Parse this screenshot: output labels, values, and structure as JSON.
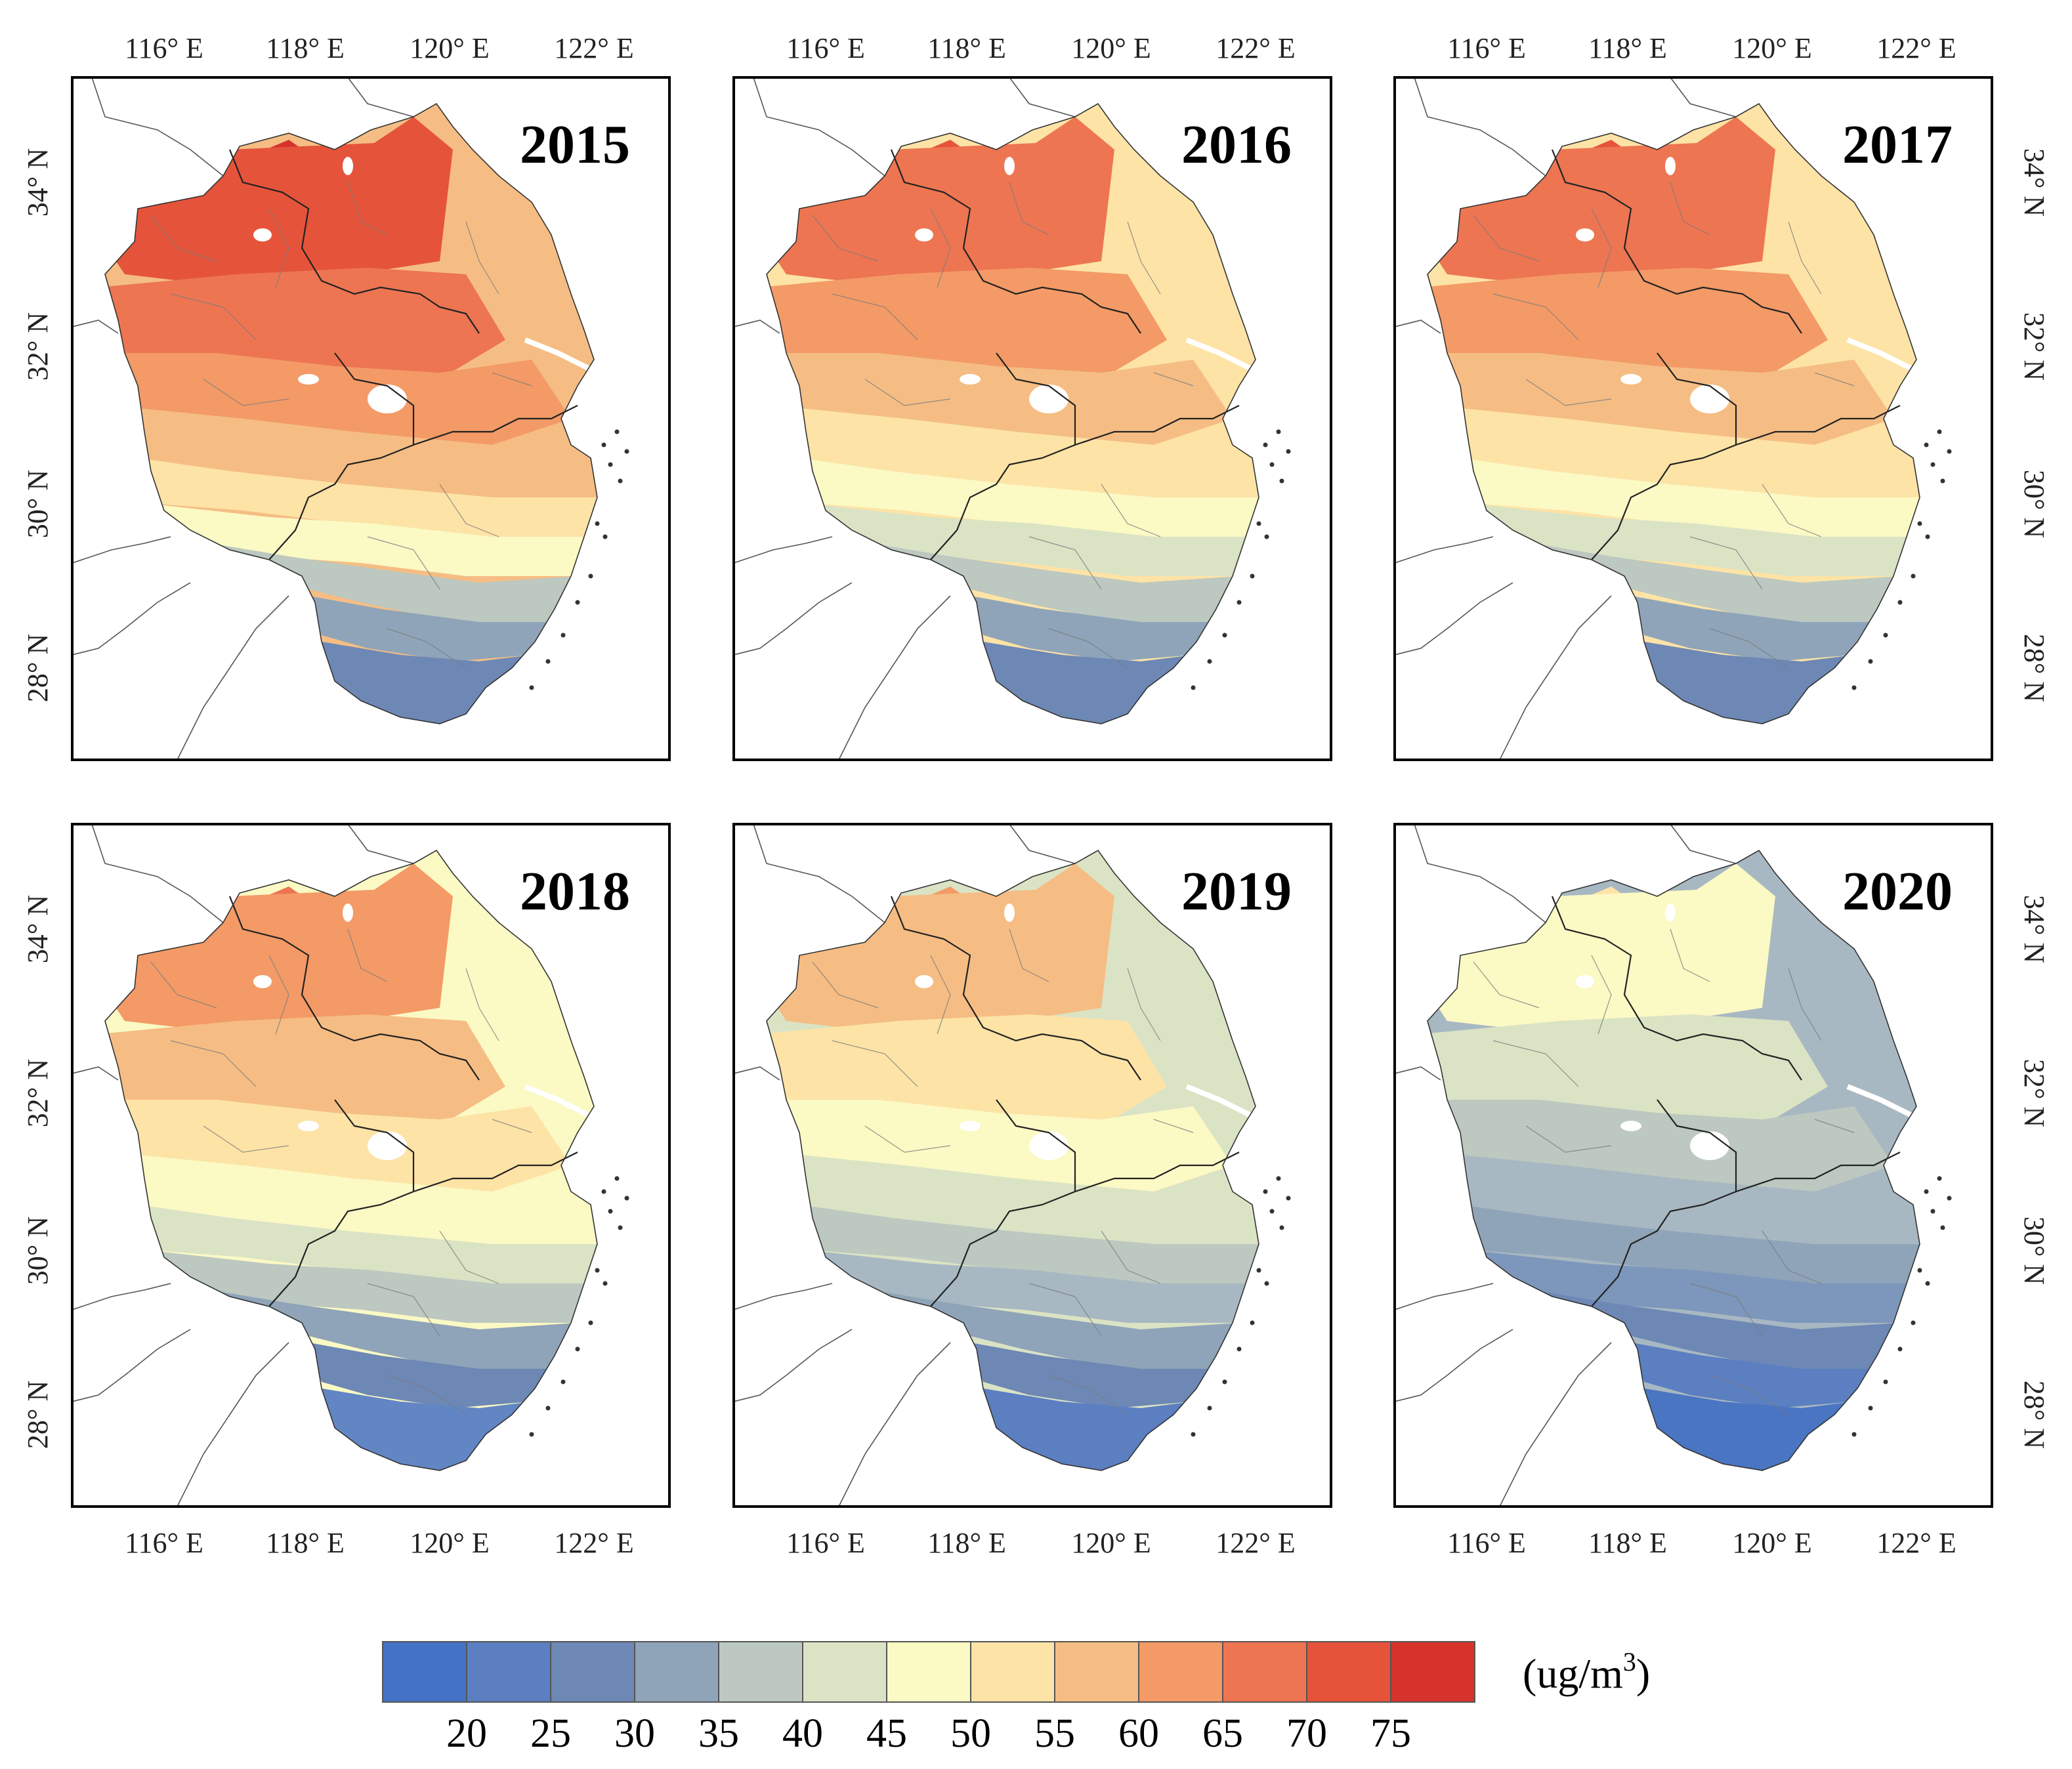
{
  "figure": {
    "panels": [
      {
        "year": "2015",
        "color_levels": [
          "#d6332c",
          "#e5543a",
          "#ed7552",
          "#f39a66",
          "#f5bd84",
          "#fde3a6",
          "#fbf9c4",
          "#bcc8c0",
          "#8fa4b8",
          "#6d88b5"
        ]
      },
      {
        "year": "2016",
        "color_levels": [
          "#e5543a",
          "#ed7552",
          "#f39a66",
          "#f5bd84",
          "#fde3a6",
          "#fbf9c4",
          "#dbe3c5",
          "#bcc8c0",
          "#8fa4b8",
          "#6d88b5"
        ]
      },
      {
        "year": "2017",
        "color_levels": [
          "#e5543a",
          "#ed7552",
          "#f39a66",
          "#f5bd84",
          "#fde3a6",
          "#fbf9c4",
          "#dbe3c5",
          "#bcc8c0",
          "#8fa4b8",
          "#6d88b5"
        ]
      },
      {
        "year": "2018",
        "color_levels": [
          "#ed7552",
          "#f39a66",
          "#f5bd84",
          "#fde3a6",
          "#fbf9c4",
          "#dbe3c5",
          "#bcc8c0",
          "#8fa4b8",
          "#6d88b5",
          "#6286c4"
        ]
      },
      {
        "year": "2019",
        "color_levels": [
          "#f39a66",
          "#f5bd84",
          "#fde3a6",
          "#fbf9c4",
          "#dbe3c5",
          "#bcc8c0",
          "#a8b8c2",
          "#8fa4b8",
          "#6d88b5",
          "#5b7fc0"
        ]
      },
      {
        "year": "2020",
        "color_levels": [
          "#fde3a6",
          "#fbf9c4",
          "#dbe3c5",
          "#bcc8c0",
          "#a8b8c2",
          "#8fa4b8",
          "#7d96bb",
          "#6d88b5",
          "#5b7fc0",
          "#4a75c2"
        ]
      }
    ],
    "lon_ticks": [
      "116° E",
      "118° E",
      "120° E",
      "122° E"
    ],
    "lat_ticks": [
      "34° N",
      "32° N",
      "30° N",
      "28° N"
    ],
    "legend": {
      "unit_label": "(ug/m",
      "unit_superscript": "3",
      "unit_close": ")",
      "colors": [
        "#4472c4",
        "#5b7fc0",
        "#6d88b5",
        "#8fa4b8",
        "#bcc8c0",
        "#dbe3c5",
        "#fbf9c4",
        "#fde3a6",
        "#f5bd84",
        "#f39a66",
        "#ed7552",
        "#e5543a",
        "#d6332c"
      ],
      "labels": [
        "20",
        "25",
        "30",
        "35",
        "40",
        "45",
        "50",
        "55",
        "60",
        "65",
        "70",
        "75"
      ]
    }
  }
}
